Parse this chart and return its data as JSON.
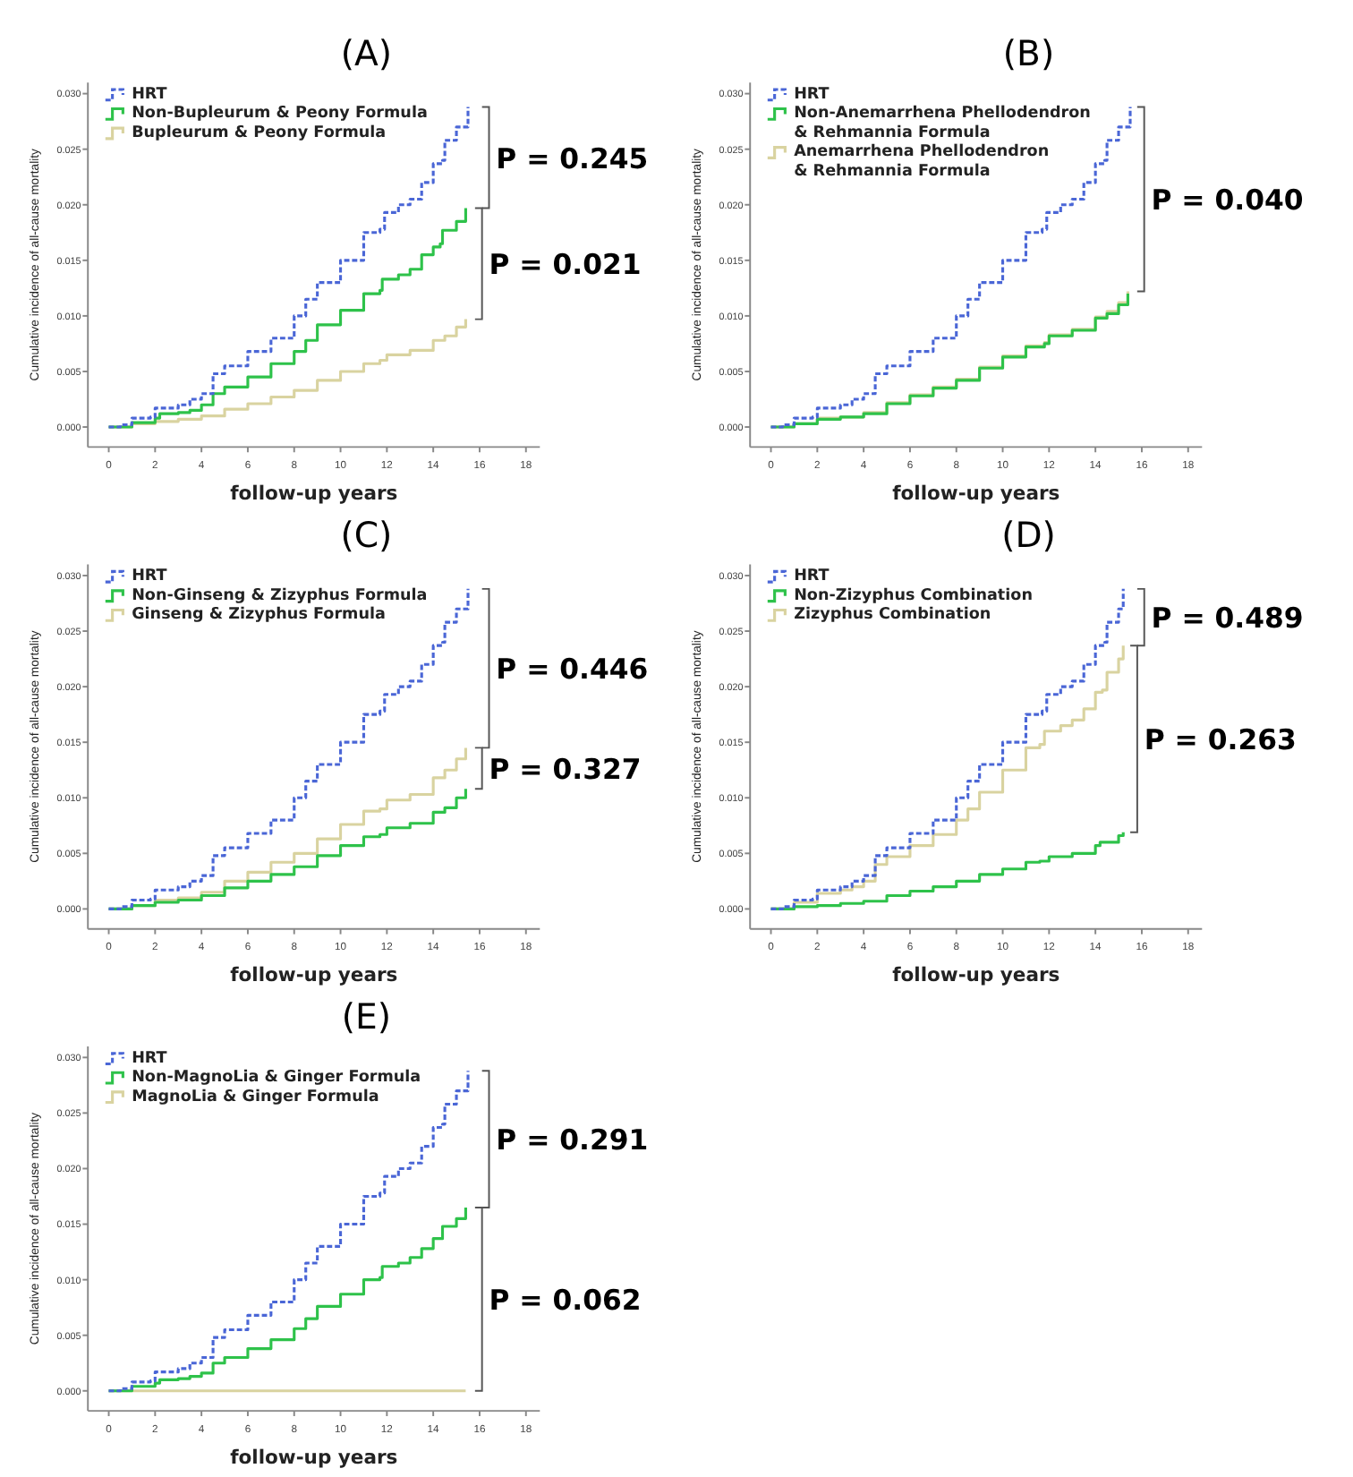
{
  "chart_data": [
    {
      "type": "step",
      "title": "(A)",
      "xlabel": "follow-up years",
      "ylabel": "Cumulative incidence of all-cause mortality",
      "xlim": [
        -0.9,
        18.6
      ],
      "ylim": [
        -0.0018,
        0.031
      ],
      "xticks": [
        0,
        2,
        4,
        6,
        8,
        10,
        12,
        14,
        16,
        18
      ],
      "yticks": [
        {
          "value": 0,
          "label": "0.000"
        },
        {
          "value": 0.005,
          "label": "0.005"
        },
        {
          "value": 0.01,
          "label": "0.010"
        },
        {
          "value": 0.015,
          "label": "0.015"
        },
        {
          "value": 0.02,
          "label": "0.020"
        },
        {
          "value": 0.025,
          "label": "0.025"
        },
        {
          "value": 0.03,
          "label": "0.030"
        }
      ],
      "grid": false,
      "legend": "top left",
      "annotations": [
        "P = 0.245",
        "P = 0.021"
      ],
      "series": [
        {
          "name": "HRT",
          "color": "#4a66d6",
          "line_style": "dotted",
          "x": [
            0,
            0.5,
            1,
            1.8,
            2,
            3,
            3.5,
            4,
            4.5,
            5,
            6,
            7,
            8,
            8.5,
            9,
            10,
            11,
            11.7,
            11.9,
            12.5,
            13,
            13.5,
            14,
            14.4,
            14.5,
            15,
            15.5
          ],
          "values": [
            0,
            0.0002,
            0.0008,
            0.0009,
            0.0017,
            0.002,
            0.0025,
            0.003,
            0.0048,
            0.0055,
            0.0068,
            0.008,
            0.01,
            0.0115,
            0.013,
            0.015,
            0.0175,
            0.0178,
            0.0193,
            0.02,
            0.0205,
            0.022,
            0.0237,
            0.024,
            0.0258,
            0.027,
            0.0288
          ]
        },
        {
          "name": "Non-Bupleurum & Peony Formula",
          "color": "#2ec24a",
          "line_style": "solid",
          "x": [
            0,
            1,
            2,
            2.2,
            3,
            3.5,
            4,
            4.5,
            5,
            6,
            7,
            8,
            8.5,
            9,
            10,
            11,
            11.7,
            11.8,
            12.5,
            13,
            13.5,
            14,
            14.3,
            14.4,
            15,
            15.4
          ],
          "values": [
            0,
            0.0004,
            0.0008,
            0.0012,
            0.0013,
            0.0015,
            0.002,
            0.003,
            0.0036,
            0.0045,
            0.0057,
            0.0068,
            0.0078,
            0.0092,
            0.0105,
            0.012,
            0.0123,
            0.0133,
            0.0137,
            0.0142,
            0.0155,
            0.0162,
            0.0165,
            0.0177,
            0.0185,
            0.0197
          ]
        },
        {
          "name": "Bupleurum & Peony Formula",
          "color": "#d9d3a0",
          "line_style": "solid",
          "x": [
            0,
            1,
            2,
            3,
            4,
            5,
            6,
            7,
            8,
            9,
            10,
            11,
            11.7,
            12,
            13,
            14,
            14.5,
            15,
            15.4
          ],
          "values": [
            0,
            0.0003,
            0.0005,
            0.0007,
            0.001,
            0.0016,
            0.0021,
            0.0027,
            0.0033,
            0.0042,
            0.005,
            0.0057,
            0.006,
            0.0065,
            0.0069,
            0.0078,
            0.0082,
            0.009,
            0.0097
          ]
        }
      ]
    },
    {
      "type": "step",
      "title": "(B)",
      "xlabel": "follow-up years",
      "ylabel": "Cumulative incidence of all-cause mortality",
      "xlim": [
        -0.9,
        18.6
      ],
      "ylim": [
        -0.0018,
        0.031
      ],
      "xticks": [
        0,
        2,
        4,
        6,
        8,
        10,
        12,
        14,
        16,
        18
      ],
      "yticks": [
        {
          "value": 0,
          "label": "0.000"
        },
        {
          "value": 0.005,
          "label": "0.005"
        },
        {
          "value": 0.01,
          "label": "0.010"
        },
        {
          "value": 0.015,
          "label": "0.015"
        },
        {
          "value": 0.02,
          "label": "0.020"
        },
        {
          "value": 0.025,
          "label": "0.025"
        },
        {
          "value": 0.03,
          "label": "0.030"
        }
      ],
      "grid": false,
      "legend": "top left",
      "annotations": [
        "P = 0.040"
      ],
      "series": [
        {
          "name": "HRT",
          "color": "#4a66d6",
          "line_style": "dotted",
          "x": [
            0,
            0.5,
            1,
            1.8,
            2,
            3,
            3.5,
            4,
            4.5,
            5,
            6,
            7,
            8,
            8.5,
            9,
            10,
            11,
            11.7,
            11.9,
            12.5,
            13,
            13.5,
            14,
            14.4,
            14.5,
            15,
            15.5
          ],
          "values": [
            0,
            0.0002,
            0.0008,
            0.0009,
            0.0017,
            0.002,
            0.0025,
            0.003,
            0.0048,
            0.0055,
            0.0068,
            0.008,
            0.01,
            0.0115,
            0.013,
            0.015,
            0.0175,
            0.0178,
            0.0193,
            0.02,
            0.0205,
            0.022,
            0.0237,
            0.024,
            0.0258,
            0.027,
            0.0288
          ]
        },
        {
          "name": "Non-Anemarrhena Phellodendron\n& Rehmannia Formula",
          "color": "#2ec24a",
          "line_style": "solid",
          "x": [
            0,
            1,
            2,
            3,
            4,
            5,
            6,
            7,
            8,
            9,
            10,
            11,
            11.8,
            12,
            13,
            14,
            14.5,
            15,
            15.4
          ],
          "values": [
            0,
            0.0003,
            0.0007,
            0.0009,
            0.0012,
            0.0021,
            0.0028,
            0.0035,
            0.0042,
            0.0053,
            0.0063,
            0.0072,
            0.0075,
            0.0082,
            0.0087,
            0.0098,
            0.0102,
            0.011,
            0.012
          ]
        },
        {
          "name": "Anemarrhena Phellodendron\n& Rehmannia Formula",
          "color": "#d9d3a0",
          "line_style": "solid",
          "x": [
            0,
            1,
            2,
            3,
            4,
            5,
            6,
            7,
            8,
            9,
            10,
            11,
            11.8,
            12,
            13,
            14,
            14.5,
            15,
            15.4
          ],
          "values": [
            0,
            0.0003,
            0.0008,
            0.0009,
            0.0013,
            0.0022,
            0.0029,
            0.0036,
            0.0043,
            0.0054,
            0.0064,
            0.0073,
            0.0076,
            0.0083,
            0.0088,
            0.0099,
            0.0104,
            0.0112,
            0.0122
          ]
        }
      ]
    },
    {
      "type": "step",
      "title": "(C)",
      "xlabel": "follow-up years",
      "ylabel": "Cumulative incidence of all-cause mortality",
      "xlim": [
        -0.9,
        18.6
      ],
      "ylim": [
        -0.0018,
        0.031
      ],
      "xticks": [
        0,
        2,
        4,
        6,
        8,
        10,
        12,
        14,
        16,
        18
      ],
      "yticks": [
        {
          "value": 0,
          "label": "0.000"
        },
        {
          "value": 0.005,
          "label": "0.005"
        },
        {
          "value": 0.01,
          "label": "0.010"
        },
        {
          "value": 0.015,
          "label": "0.015"
        },
        {
          "value": 0.02,
          "label": "0.020"
        },
        {
          "value": 0.025,
          "label": "0.025"
        },
        {
          "value": 0.03,
          "label": "0.030"
        }
      ],
      "grid": false,
      "legend": "top left",
      "annotations": [
        "P = 0.446",
        "P = 0.327"
      ],
      "series": [
        {
          "name": "HRT",
          "color": "#4a66d6",
          "line_style": "dotted",
          "x": [
            0,
            0.5,
            1,
            1.8,
            2,
            3,
            3.5,
            4,
            4.5,
            5,
            6,
            7,
            8,
            8.5,
            9,
            10,
            11,
            11.7,
            11.9,
            12.5,
            13,
            13.5,
            14,
            14.4,
            14.5,
            15,
            15.5
          ],
          "values": [
            0,
            0.0002,
            0.0008,
            0.0009,
            0.0017,
            0.002,
            0.0025,
            0.003,
            0.0048,
            0.0055,
            0.0068,
            0.008,
            0.01,
            0.0115,
            0.013,
            0.015,
            0.0175,
            0.0178,
            0.0193,
            0.02,
            0.0205,
            0.022,
            0.0237,
            0.024,
            0.0258,
            0.027,
            0.0288
          ]
        },
        {
          "name": "Non-Ginseng & Zizyphus Formula",
          "color": "#2ec24a",
          "line_style": "solid",
          "x": [
            0,
            1,
            2,
            3,
            4,
            5,
            6,
            7,
            8,
            9,
            10,
            11,
            11.7,
            12,
            13,
            14,
            14.5,
            15,
            15.4
          ],
          "values": [
            0,
            0.0003,
            0.0006,
            0.0008,
            0.0012,
            0.0019,
            0.0025,
            0.0031,
            0.0038,
            0.0048,
            0.0057,
            0.0065,
            0.0067,
            0.0073,
            0.0077,
            0.0087,
            0.0091,
            0.01,
            0.0108
          ]
        },
        {
          "name": "Ginseng & Zizyphus Formula",
          "color": "#d9d3a0",
          "line_style": "solid",
          "x": [
            0,
            1,
            2,
            3,
            4,
            5,
            6,
            7,
            8,
            9,
            10,
            11,
            11.7,
            12,
            13,
            14,
            14.5,
            15,
            15.4
          ],
          "values": [
            0,
            0.0003,
            0.0008,
            0.001,
            0.0015,
            0.0025,
            0.0033,
            0.0042,
            0.005,
            0.0063,
            0.0076,
            0.0088,
            0.009,
            0.0098,
            0.0103,
            0.0118,
            0.0125,
            0.0135,
            0.0145
          ]
        }
      ]
    },
    {
      "type": "step",
      "title": "(D)",
      "xlabel": "follow-up years",
      "ylabel": "Cumulative incidence of all-cause mortality",
      "xlim": [
        -0.9,
        18.6
      ],
      "ylim": [
        -0.0018,
        0.031
      ],
      "xticks": [
        0,
        2,
        4,
        6,
        8,
        10,
        12,
        14,
        16,
        18
      ],
      "yticks": [
        {
          "value": 0,
          "label": "0.000"
        },
        {
          "value": 0.005,
          "label": "0.005"
        },
        {
          "value": 0.01,
          "label": "0.010"
        },
        {
          "value": 0.015,
          "label": "0.015"
        },
        {
          "value": 0.02,
          "label": "0.020"
        },
        {
          "value": 0.025,
          "label": "0.025"
        },
        {
          "value": 0.03,
          "label": "0.030"
        }
      ],
      "grid": false,
      "legend": "top left",
      "annotations": [
        "P = 0.489",
        "P = 0.263"
      ],
      "series": [
        {
          "name": "HRT",
          "color": "#4a66d6",
          "line_style": "dotted",
          "x": [
            0,
            0.5,
            1,
            1.8,
            2,
            3,
            3.5,
            4,
            4.5,
            5,
            6,
            7,
            8,
            8.5,
            9,
            10,
            11,
            11.7,
            11.9,
            12.5,
            13,
            13.5,
            14,
            14.4,
            14.5,
            15,
            15.2
          ],
          "values": [
            0,
            0.0002,
            0.0008,
            0.0009,
            0.0017,
            0.002,
            0.0025,
            0.003,
            0.0048,
            0.0055,
            0.0068,
            0.008,
            0.01,
            0.0115,
            0.013,
            0.015,
            0.0175,
            0.0178,
            0.0193,
            0.02,
            0.0205,
            0.022,
            0.0237,
            0.024,
            0.0258,
            0.027,
            0.0288
          ]
        },
        {
          "name": "Non-Zizyphus Combination",
          "color": "#2ec24a",
          "line_style": "solid",
          "x": [
            0,
            1,
            2,
            3,
            4,
            5,
            6,
            7,
            8,
            9,
            10,
            11,
            11.6,
            12,
            13,
            14,
            14.2,
            15,
            15.2
          ],
          "values": [
            0,
            0.0002,
            0.0003,
            0.0005,
            0.0007,
            0.0012,
            0.0016,
            0.002,
            0.0025,
            0.0031,
            0.0036,
            0.0042,
            0.0043,
            0.0047,
            0.005,
            0.0057,
            0.006,
            0.0066,
            0.0069
          ]
        },
        {
          "name": "Zizyphus Combination",
          "color": "#d9d3a0",
          "line_style": "solid",
          "x": [
            0,
            1,
            2,
            3,
            3.5,
            4,
            4.5,
            5,
            6,
            7,
            8,
            8.5,
            9,
            10,
            11,
            11.6,
            11.8,
            12.5,
            13,
            13.5,
            14,
            14.3,
            14.5,
            15,
            15.2
          ],
          "values": [
            0,
            0.0006,
            0.0014,
            0.0017,
            0.002,
            0.0025,
            0.004,
            0.0047,
            0.0057,
            0.0067,
            0.008,
            0.009,
            0.0105,
            0.0125,
            0.0145,
            0.0148,
            0.016,
            0.0165,
            0.017,
            0.018,
            0.0195,
            0.0197,
            0.0213,
            0.0225,
            0.0237
          ]
        }
      ]
    },
    {
      "type": "step",
      "title": "(E)",
      "xlabel": "follow-up years",
      "ylabel": "Cumulative incidence of all-cause mortality",
      "xlim": [
        -0.9,
        18.6
      ],
      "ylim": [
        -0.0018,
        0.031
      ],
      "xticks": [
        0,
        2,
        4,
        6,
        8,
        10,
        12,
        14,
        16,
        18
      ],
      "yticks": [
        {
          "value": 0,
          "label": "0.000"
        },
        {
          "value": 0.005,
          "label": "0.005"
        },
        {
          "value": 0.01,
          "label": "0.010"
        },
        {
          "value": 0.015,
          "label": "0.015"
        },
        {
          "value": 0.02,
          "label": "0.020"
        },
        {
          "value": 0.025,
          "label": "0.025"
        },
        {
          "value": 0.03,
          "label": "0.030"
        }
      ],
      "grid": false,
      "legend": "top left",
      "annotations": [
        "P = 0.291",
        "P = 0.062"
      ],
      "series": [
        {
          "name": "HRT",
          "color": "#4a66d6",
          "line_style": "dotted",
          "x": [
            0,
            0.5,
            1,
            1.8,
            2,
            3,
            3.5,
            4,
            4.5,
            5,
            6,
            7,
            8,
            8.5,
            9,
            10,
            11,
            11.7,
            11.9,
            12.5,
            13,
            13.5,
            14,
            14.4,
            14.5,
            15,
            15.5
          ],
          "values": [
            0,
            0.0002,
            0.0008,
            0.0009,
            0.0017,
            0.002,
            0.0025,
            0.003,
            0.0048,
            0.0055,
            0.0068,
            0.008,
            0.01,
            0.0115,
            0.013,
            0.015,
            0.0175,
            0.0178,
            0.0193,
            0.02,
            0.0205,
            0.022,
            0.0237,
            0.024,
            0.0258,
            0.027,
            0.0288
          ]
        },
        {
          "name": "Non-MagnoLia & Ginger Formula",
          "color": "#2ec24a",
          "line_style": "solid",
          "x": [
            0,
            1,
            2,
            2.2,
            3,
            3.5,
            4,
            4.5,
            5,
            6,
            7,
            8,
            8.5,
            9,
            10,
            11,
            11.7,
            11.8,
            12.5,
            13,
            13.5,
            14,
            14.3,
            14.4,
            15,
            15.4
          ],
          "values": [
            0,
            0.0004,
            0.0007,
            0.001,
            0.0011,
            0.0013,
            0.0016,
            0.0025,
            0.003,
            0.0038,
            0.0046,
            0.0056,
            0.0065,
            0.0076,
            0.0087,
            0.01,
            0.0102,
            0.0112,
            0.0115,
            0.012,
            0.0128,
            0.0137,
            0.0137,
            0.0148,
            0.0155,
            0.0165
          ]
        },
        {
          "name": "MagnoLia & Ginger Formula",
          "color": "#d9d3a0",
          "line_style": "solid",
          "x": [
            0,
            15.4
          ],
          "values": [
            0,
            0
          ]
        }
      ]
    }
  ]
}
